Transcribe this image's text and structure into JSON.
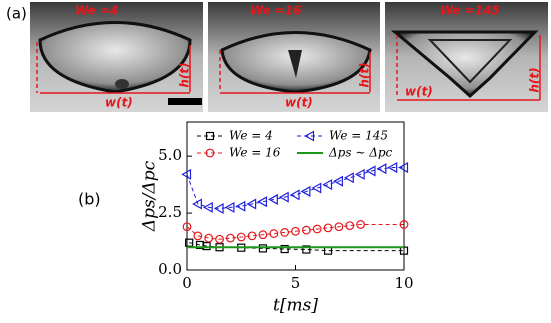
{
  "panel_a": {
    "label": "(a)",
    "images": [
      {
        "we_label": "We =4",
        "height_label": "h(t)",
        "width_label": "w(t)"
      },
      {
        "we_label": "We =16",
        "height_label": "h(t)",
        "width_label": "w(t)"
      },
      {
        "we_label": "We =145",
        "height_label": "h(t)",
        "width_label": "w(t)"
      }
    ]
  },
  "panel_b_label": "(b)",
  "chart_data": {
    "type": "line",
    "xlabel": "t[ms]",
    "ylabel": "Δps/Δpc",
    "xlim": [
      0,
      10
    ],
    "xticks": [
      0,
      5,
      10
    ],
    "ylim": [
      0,
      6.5
    ],
    "yticks": [
      {
        "value": 0,
        "label": "0.0"
      },
      {
        "value": 2.5,
        "label": "2.5"
      },
      {
        "value": 5,
        "label": "5.0"
      }
    ],
    "series": [
      {
        "name": "We = 4",
        "color": "#000000",
        "marker": "square",
        "dash": true,
        "x": [
          0.1,
          0.6,
          0.9,
          1.5,
          2.5,
          3.5,
          4.5,
          5.5,
          6.5,
          10
        ],
        "values": [
          1.2,
          1.1,
          1.05,
          1.0,
          0.98,
          0.95,
          0.92,
          0.9,
          0.85,
          0.85
        ]
      },
      {
        "name": "We = 145",
        "color": "#1f1fe0",
        "marker": "triangle-left",
        "dash": true,
        "x": [
          0,
          0.5,
          1,
          1.5,
          2,
          2.5,
          3,
          3.5,
          4,
          4.5,
          5,
          5.5,
          6,
          6.5,
          7,
          7.5,
          8,
          8.5,
          9,
          9.5,
          10
        ],
        "values": [
          4.2,
          2.9,
          2.75,
          2.7,
          2.75,
          2.8,
          2.9,
          3.0,
          3.1,
          3.2,
          3.3,
          3.45,
          3.6,
          3.75,
          3.9,
          4.05,
          4.2,
          4.35,
          4.45,
          4.5,
          4.5
        ]
      },
      {
        "name": "We = 16",
        "color": "#e8161b",
        "marker": "circle",
        "dash": true,
        "x": [
          0,
          0.5,
          1,
          1.5,
          2,
          2.5,
          3,
          3.5,
          4,
          4.5,
          5,
          5.5,
          6,
          6.5,
          7,
          7.5,
          8,
          10
        ],
        "values": [
          1.9,
          1.5,
          1.4,
          1.35,
          1.4,
          1.45,
          1.5,
          1.55,
          1.6,
          1.65,
          1.7,
          1.75,
          1.8,
          1.85,
          1.9,
          1.95,
          2.0,
          2.0
        ]
      },
      {
        "name": "Δps ∼ Δpc",
        "color": "#1a9a1a",
        "marker": "none",
        "dash": false,
        "x": [
          0,
          10
        ],
        "values": [
          1.0,
          1.0
        ]
      }
    ]
  }
}
